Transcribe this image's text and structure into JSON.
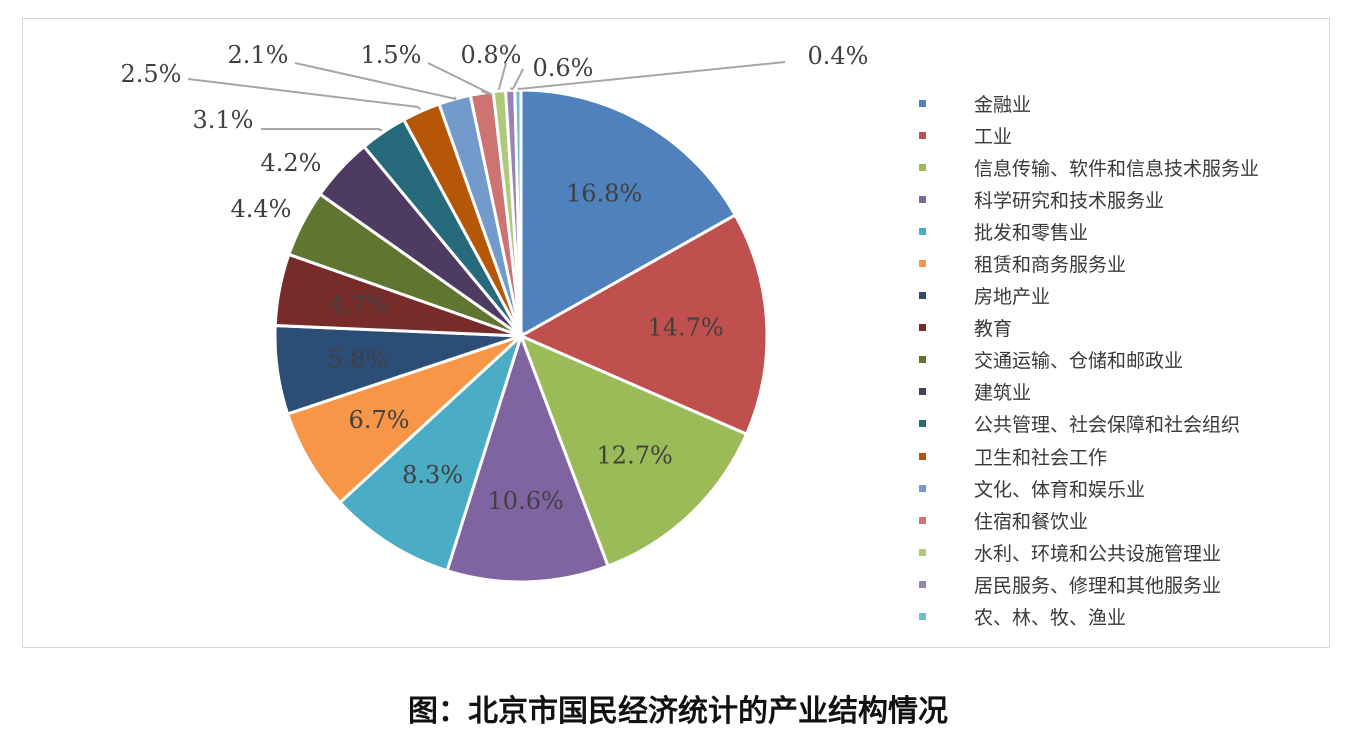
{
  "chart_data": {
    "type": "pie",
    "title": "",
    "legend_position": "right",
    "label_format": "percent",
    "slices": [
      {
        "label": "金融业",
        "value": 16.8,
        "display": "16.8%",
        "color": "#4F81BD"
      },
      {
        "label": "工业",
        "value": 14.7,
        "display": "14.7%",
        "color": "#C0504D"
      },
      {
        "label": "信息传输、软件和信息技术服务业",
        "value": 12.7,
        "display": "12.7%",
        "color": "#9BBB59"
      },
      {
        "label": "科学研究和技术服务业",
        "value": 10.6,
        "display": "10.6%",
        "color": "#8064A2"
      },
      {
        "label": "批发和零售业",
        "value": 8.3,
        "display": "8.3%",
        "color": "#4BACC6"
      },
      {
        "label": "租赁和商务服务业",
        "value": 6.7,
        "display": "6.7%",
        "color": "#F79646"
      },
      {
        "label": "房地产业",
        "value": 5.8,
        "display": "5.8%",
        "color": "#2C4D75"
      },
      {
        "label": "教育",
        "value": 4.7,
        "display": "4.7%",
        "color": "#772C2A"
      },
      {
        "label": "交通运输、仓储和邮政业",
        "value": 4.4,
        "display": "4.4%",
        "color": "#5F7530"
      },
      {
        "label": "建筑业",
        "value": 4.2,
        "display": "4.2%",
        "color": "#4D3B62"
      },
      {
        "label": "公共管理、社会保障和社会组织",
        "value": 3.1,
        "display": "3.1%",
        "color": "#276A7C"
      },
      {
        "label": "卫生和社会工作",
        "value": 2.5,
        "display": "2.5%",
        "color": "#B65708"
      },
      {
        "label": "文化、体育和娱乐业",
        "value": 2.1,
        "display": "2.1%",
        "color": "#729ACA"
      },
      {
        "label": "住宿和餐饮业",
        "value": 1.5,
        "display": "1.5%",
        "color": "#CD7371"
      },
      {
        "label": "水利、环境和公共设施管理业",
        "value": 0.8,
        "display": "0.8%",
        "color": "#AFC97A"
      },
      {
        "label": "居民服务、修理和其他服务业",
        "value": 0.6,
        "display": "0.6%",
        "color": "#9983B5"
      },
      {
        "label": "农、林、牧、渔业",
        "value": 0.4,
        "display": "0.4%",
        "color": "#6FBDD1"
      }
    ]
  },
  "caption": "图：北京市国民经济统计的产业结构情况"
}
